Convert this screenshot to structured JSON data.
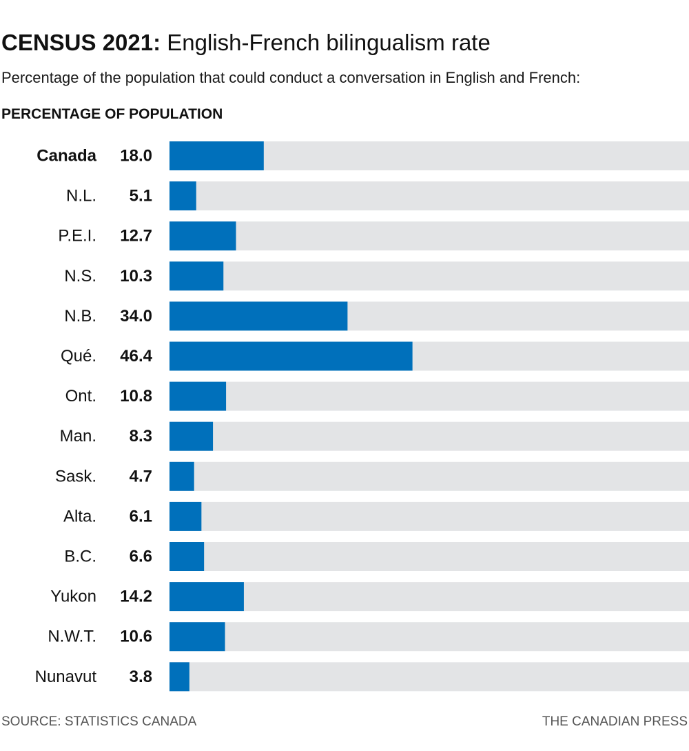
{
  "header": {
    "title_bold": "CENSUS 2021:",
    "title_rest": " English-French bilingualism rate",
    "subtitle": "Percentage of the population that could conduct a conversation in English and French:",
    "axis_label": "PERCENTAGE OF POPULATION"
  },
  "footer": {
    "source": "SOURCE: STATISTICS CANADA",
    "credit": "THE CANADIAN PRESS"
  },
  "colors": {
    "bar": "#0070bb",
    "track": "#e3e4e6",
    "text": "#111111"
  },
  "chart_data": {
    "type": "bar",
    "orientation": "horizontal",
    "title": "CENSUS 2021: English-French bilingualism rate",
    "subtitle": "Percentage of the population that could conduct a conversation in English and French:",
    "xlabel": "PERCENTAGE OF POPULATION",
    "ylabel": "",
    "xlim": [
      0,
      100
    ],
    "grid": false,
    "highlight_category": "Canada",
    "categories": [
      "Canada",
      "N.L.",
      "P.E.I.",
      "N.S.",
      "N.B.",
      "Qué.",
      "Ont.",
      "Man.",
      "Sask.",
      "Alta.",
      "B.C.",
      "Yukon",
      "N.W.T.",
      "Nunavut"
    ],
    "values": [
      18.0,
      5.1,
      12.7,
      10.3,
      34.0,
      46.4,
      10.8,
      8.3,
      4.7,
      6.1,
      6.6,
      14.2,
      10.6,
      3.8
    ],
    "value_labels": [
      "18.0",
      "5.1",
      "12.7",
      "10.3",
      "34.0",
      "46.4",
      "10.8",
      "8.3",
      "4.7",
      "6.1",
      "6.6",
      "14.2",
      "10.6",
      "3.8"
    ]
  }
}
